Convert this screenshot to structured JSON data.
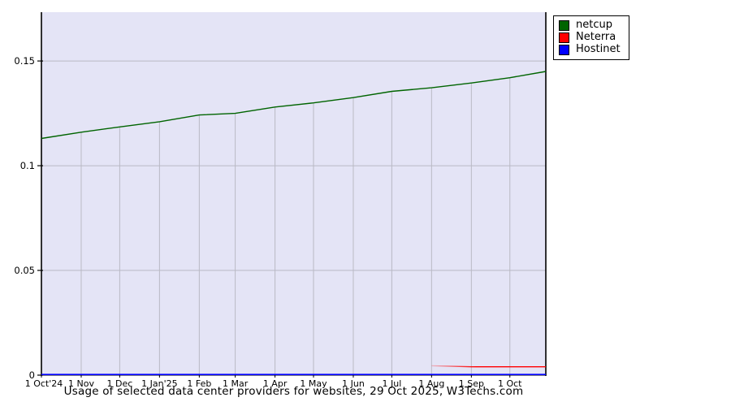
{
  "chart_data": {
    "type": "line",
    "title": "Usage of selected data center providers for websites, 29 Oct 2025, W3Techs.com",
    "background": "#ffffff",
    "plot_bg": "#e4e4f6",
    "grid_color": "#b9b9c4",
    "axis_color": "#000000",
    "legend_position": "top-right-outside",
    "x_axis": {
      "total_days": 393,
      "ticks": [
        {
          "label": "1 Oct'24",
          "day": 0
        },
        {
          "label": "1 Nov",
          "day": 31
        },
        {
          "label": "1 Dec",
          "day": 61
        },
        {
          "label": "1 Jan'25",
          "day": 92
        },
        {
          "label": "1 Feb",
          "day": 123
        },
        {
          "label": "1 Mar",
          "day": 151
        },
        {
          "label": "1 Apr",
          "day": 182
        },
        {
          "label": "1 May",
          "day": 212
        },
        {
          "label": "1 Jun",
          "day": 243
        },
        {
          "label": "1 Jul",
          "day": 273
        },
        {
          "label": "1 Aug",
          "day": 304
        },
        {
          "label": "1 Sep",
          "day": 335
        },
        {
          "label": "1 Oct",
          "day": 365
        }
      ]
    },
    "y_axis": {
      "min": 0,
      "max": 0.1733,
      "ticks": [
        {
          "label": "0",
          "value": 0
        },
        {
          "label": "0.05",
          "value": 0.05
        },
        {
          "label": "0.1",
          "value": 0.1
        },
        {
          "label": "0.15",
          "value": 0.15
        }
      ]
    },
    "series": [
      {
        "name": "netcup",
        "color": "#006400",
        "points": [
          [
            0,
            0.113
          ],
          [
            31,
            0.116
          ],
          [
            61,
            0.1185
          ],
          [
            92,
            0.121
          ],
          [
            123,
            0.1242
          ],
          [
            151,
            0.125
          ],
          [
            182,
            0.128
          ],
          [
            212,
            0.13
          ],
          [
            243,
            0.1325
          ],
          [
            273,
            0.1355
          ],
          [
            304,
            0.1372
          ],
          [
            335,
            0.1395
          ],
          [
            365,
            0.142
          ],
          [
            393,
            0.145
          ]
        ]
      },
      {
        "name": "Neterra",
        "color": "#ff0000",
        "fade_in": true,
        "points": [
          [
            304,
            0.0045
          ],
          [
            335,
            0.004
          ],
          [
            365,
            0.004
          ],
          [
            393,
            0.004
          ]
        ]
      },
      {
        "name": "Hostinet",
        "color": "#0000ff",
        "points": [
          [
            0,
            0.0003
          ],
          [
            393,
            0.0003
          ]
        ]
      }
    ]
  }
}
